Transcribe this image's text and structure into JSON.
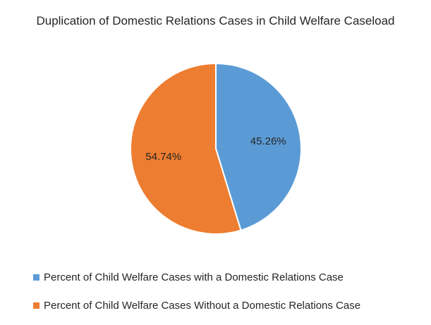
{
  "chart_data": {
    "type": "pie",
    "title": "Duplication of Domestic Relations Cases in Child Welfare Caseload",
    "slices": [
      {
        "name": "Percent of Child Welfare Cases with a Domestic Relations Case",
        "value": 45.26,
        "label": "45.26%",
        "color": "#5b9bd5"
      },
      {
        "name": "Percent of Child Welfare Cases Without a Domestic Relations Case",
        "value": 54.74,
        "label": "54.74%",
        "color": "#ed7d31"
      }
    ],
    "legend_position": "bottom"
  }
}
